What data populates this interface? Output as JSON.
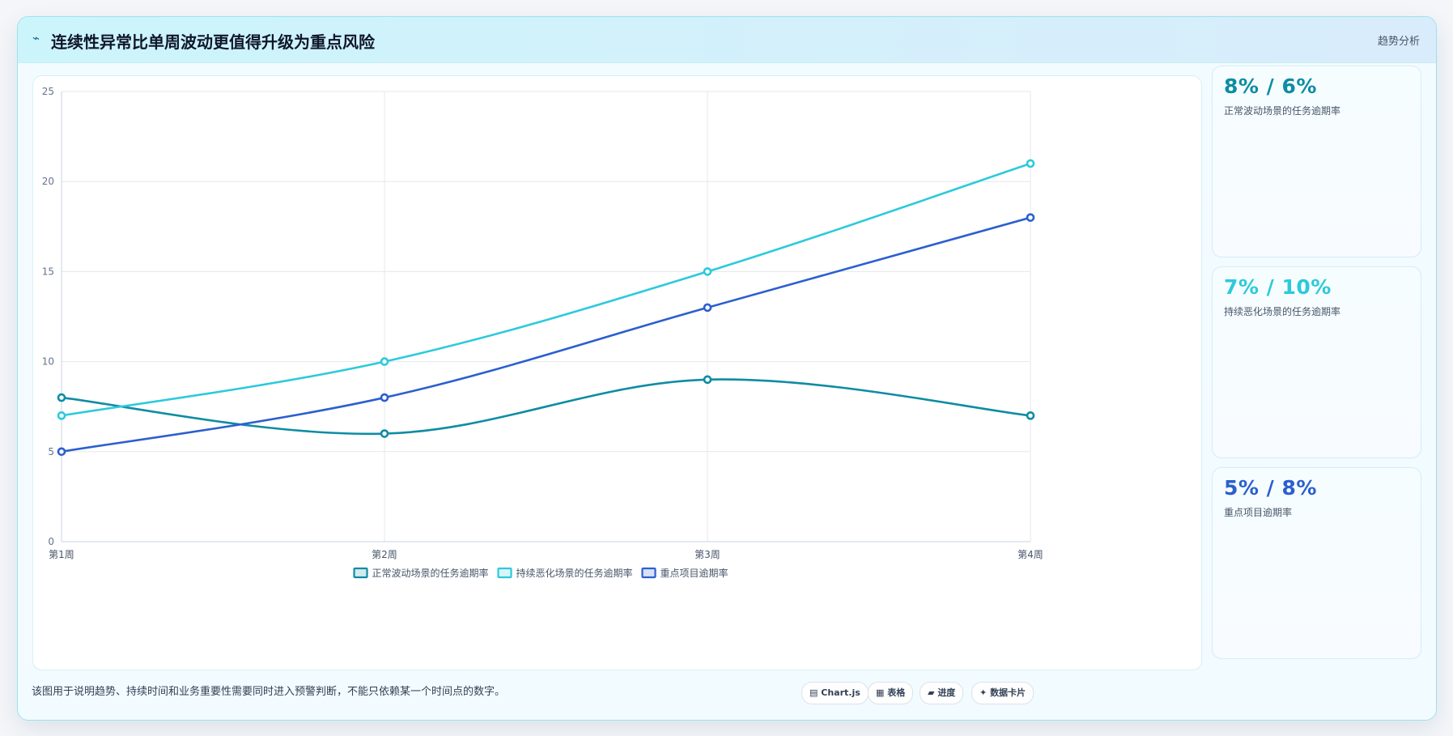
{
  "header": {
    "icon": "trend-line-icon",
    "icon_glyph": "⌁",
    "title": "连续性异常比单周波动更值得升级为重点风险",
    "tag": "趋势分析"
  },
  "chart_data": {
    "type": "line",
    "categories": [
      "第1周",
      "第2周",
      "第3周",
      "第4周"
    ],
    "ylim": [
      0,
      25
    ],
    "yticks": [
      0,
      5,
      10,
      15,
      20,
      25
    ],
    "grid": true,
    "legend_position": "bottom",
    "series": [
      {
        "name": "正常波动场景的任务逾期率",
        "color": "#0e8ca3",
        "values": [
          8,
          6,
          9,
          7
        ]
      },
      {
        "name": "持续恶化场景的任务逾期率",
        "color": "#2ccadb",
        "values": [
          7,
          10,
          15,
          21
        ]
      },
      {
        "name": "重点项目逾期率",
        "color": "#2b5fcf",
        "values": [
          5,
          8,
          13,
          18
        ]
      }
    ]
  },
  "stats": [
    {
      "value": "8% / 6%",
      "label": "正常波动场景的任务逾期率",
      "color": "#0e8ca3"
    },
    {
      "value": "7% / 10%",
      "label": "持续恶化场景的任务逾期率",
      "color": "#2ccadb"
    },
    {
      "value": "5% / 8%",
      "label": "重点项目逾期率",
      "color": "#2b5fcf"
    }
  ],
  "note": "该图用于说明趋势、持续时间和业务重要性需要同时进入预警判断，不能只依赖某一个时间点的数字。",
  "chips": [
    {
      "icon": "chart-icon",
      "glyph": "▤",
      "label": "Chart.js"
    },
    {
      "icon": "table-icon",
      "glyph": "▦",
      "label": "表格"
    },
    {
      "icon": "progress-icon",
      "glyph": "▰",
      "label": "进度"
    },
    {
      "icon": "data-card-icon",
      "glyph": "✦",
      "label": "数据卡片"
    }
  ]
}
